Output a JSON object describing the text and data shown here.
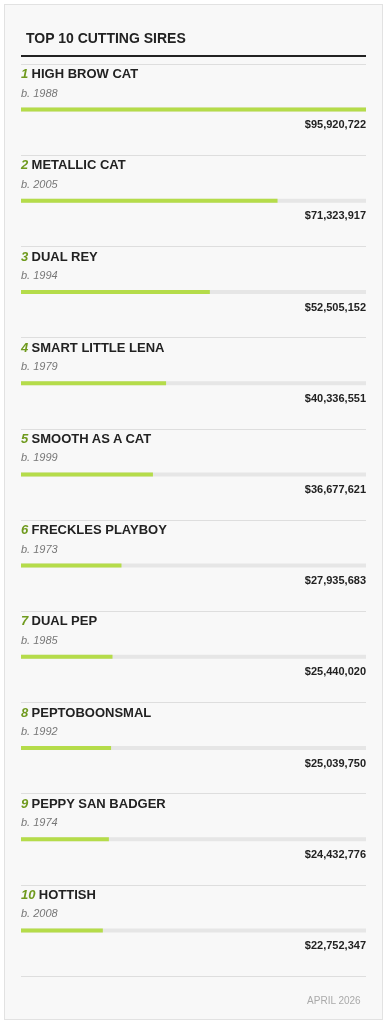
{
  "chart_data": {
    "type": "bar",
    "orientation": "horizontal",
    "title": "TOP 10 CUTTING SIRES",
    "categories": [
      "1 HIGH BROW CAT\nb. 1988",
      "2 METALLIC CAT\nb. 2005",
      "3 DUAL REY\nb. 1994",
      "4 SMART LITTLE LENA\nb. 1979",
      "5 SMOOTH AS A CAT\nb. 1999",
      "6 FRECKLES PLAYBOY\nb. 1973",
      "7 DUAL PEP\nb. 1985",
      "8 PEPTOBOONSMAL\nb. 1992",
      "9 PEPPY SAN BADGER\nb. 1974",
      "10 HOTTISH\nb. 2008"
    ],
    "values": [
      95920722,
      71323917,
      52505152,
      40336551,
      36677621,
      27935683,
      25440020,
      25039750,
      24432776,
      22752347
    ],
    "value_labels": [
      "$95,920,722",
      "$71,323,917",
      "$52,505,152",
      "$40,336,551",
      "$36,677,621",
      "$27,935,683",
      "$25,440,020",
      "$25,039,750",
      "$24,432,776",
      "$22,752,347"
    ],
    "color": "#b5dc4a",
    "xlim": [
      0,
      95920722
    ],
    "grid": "y",
    "annotations": [
      "APRIL 2026"
    ]
  }
}
